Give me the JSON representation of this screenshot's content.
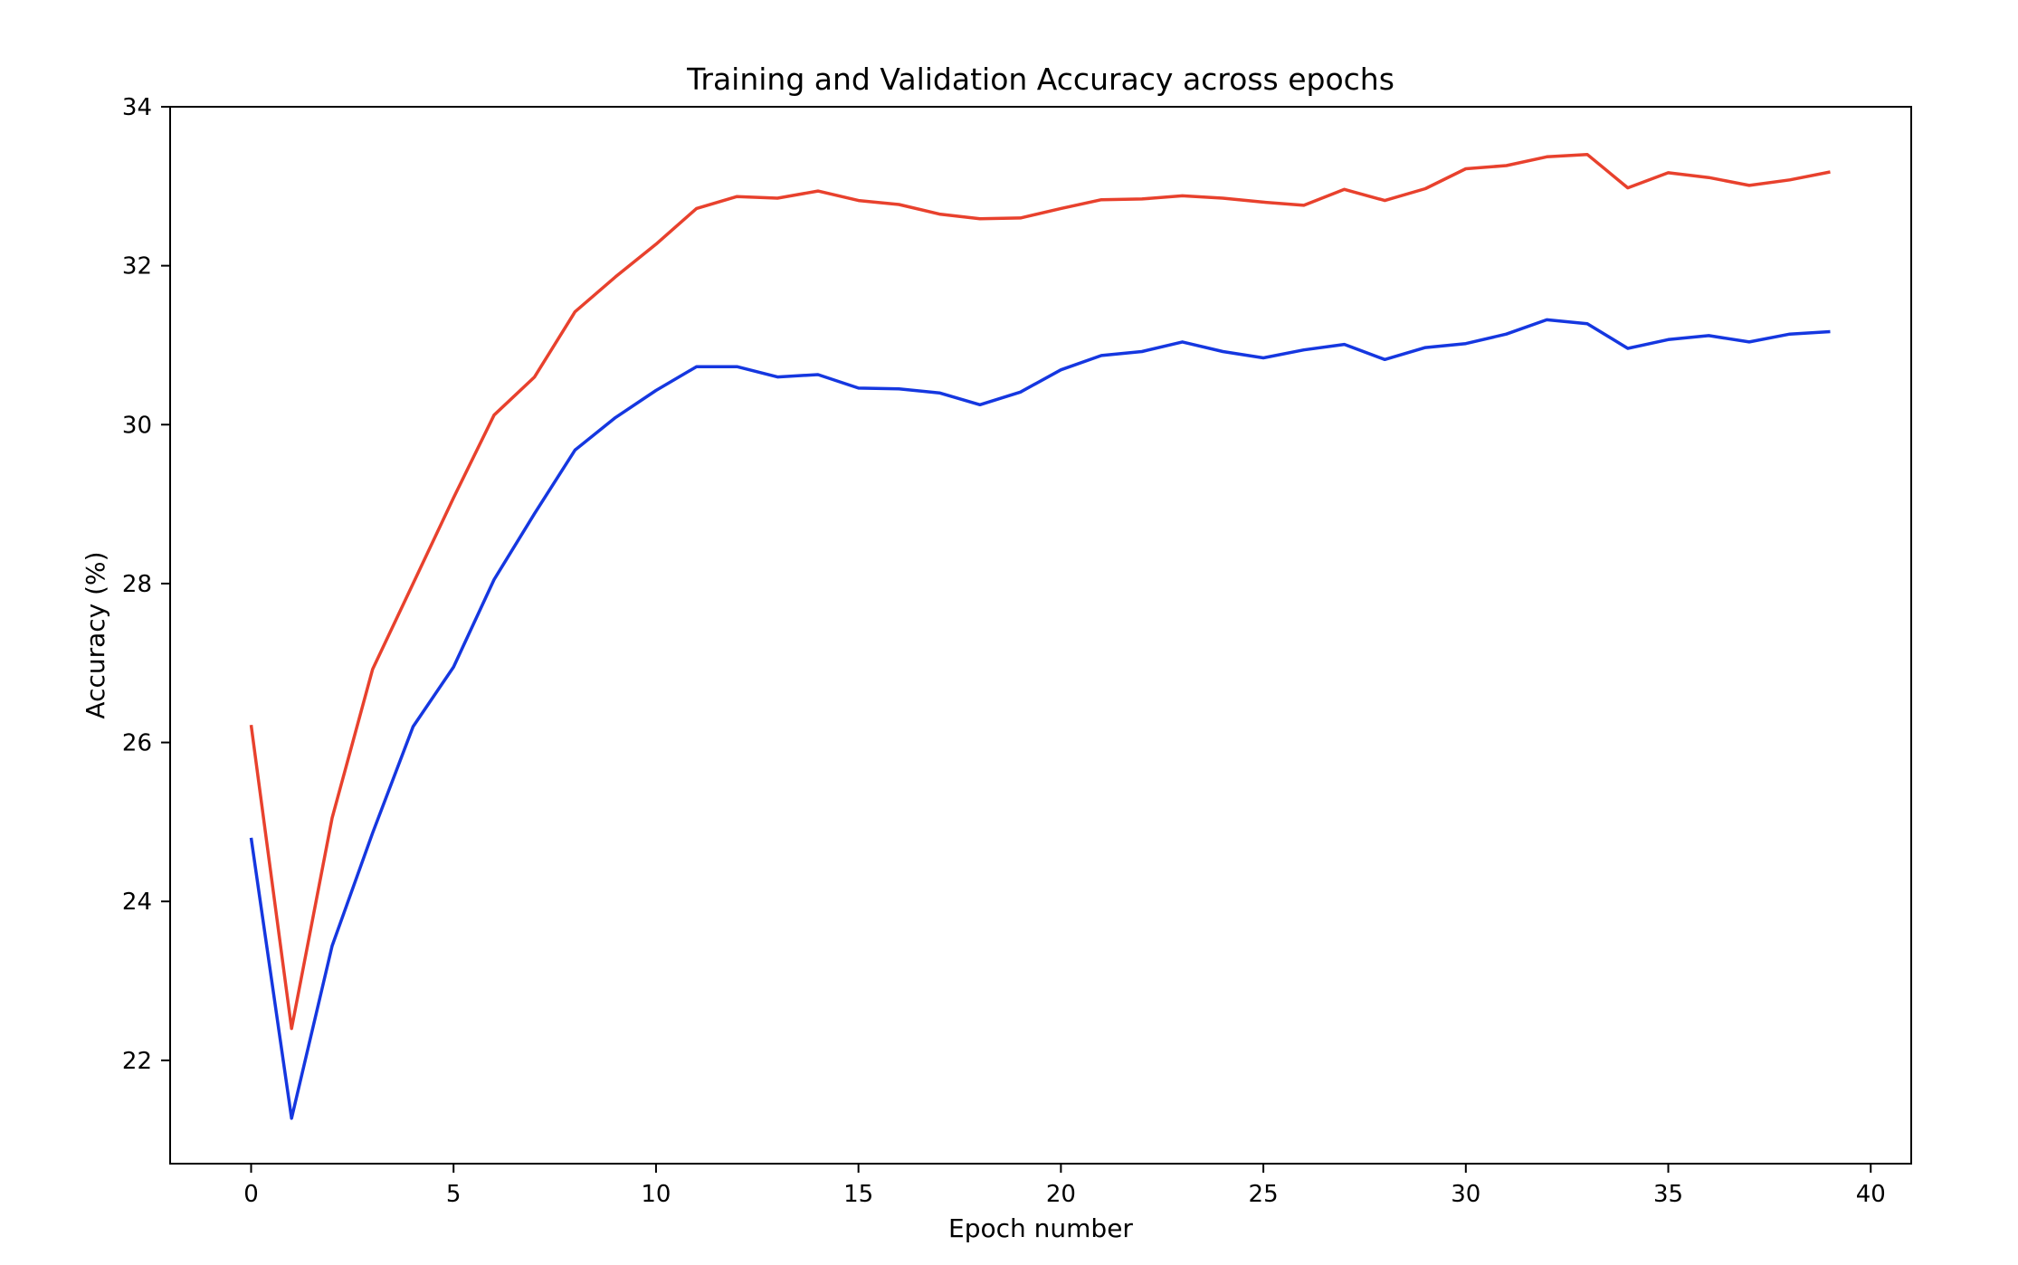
{
  "chart_data": {
    "type": "line",
    "title": "Training and Validation Accuracy across epochs",
    "xlabel": "Epoch number",
    "ylabel": "Accuracy (%)",
    "xlim": [
      -2,
      41
    ],
    "ylim": [
      20.7,
      34
    ],
    "xticks": [
      0,
      5,
      10,
      15,
      20,
      25,
      30,
      35,
      40
    ],
    "yticks": [
      22,
      24,
      26,
      28,
      30,
      32,
      34
    ],
    "xtick_labels": [
      "0",
      "5",
      "10",
      "15",
      "20",
      "25",
      "30",
      "35",
      "40"
    ],
    "ytick_labels": [
      "22",
      "24",
      "26",
      "28",
      "30",
      "32",
      "34"
    ],
    "grid": false,
    "legend": false,
    "x": [
      0,
      1,
      2,
      3,
      4,
      5,
      6,
      7,
      8,
      9,
      10,
      11,
      12,
      13,
      14,
      15,
      16,
      17,
      18,
      19,
      20,
      21,
      22,
      23,
      24,
      25,
      26,
      27,
      28,
      29,
      30,
      31,
      32,
      33,
      34,
      35,
      36,
      37,
      38,
      39
    ],
    "series": [
      {
        "color": "#e8412d",
        "values": [
          26.22,
          22.4,
          25.05,
          26.92,
          28.0,
          29.08,
          30.12,
          30.6,
          31.42,
          31.86,
          32.27,
          32.72,
          32.87,
          32.85,
          32.94,
          32.82,
          32.77,
          32.65,
          32.59,
          32.6,
          32.72,
          32.83,
          32.84,
          32.88,
          32.85,
          32.8,
          32.76,
          32.96,
          32.82,
          32.97,
          33.22,
          33.26,
          33.37,
          33.4,
          32.98,
          33.17,
          33.11,
          33.01,
          33.08,
          33.18
        ]
      },
      {
        "color": "#1537e0",
        "values": [
          24.8,
          21.27,
          23.44,
          24.86,
          26.2,
          26.95,
          28.05,
          28.88,
          29.68,
          30.09,
          30.43,
          30.73,
          30.73,
          30.6,
          30.63,
          30.46,
          30.45,
          30.4,
          30.25,
          30.41,
          30.69,
          30.87,
          30.92,
          31.04,
          30.92,
          30.84,
          30.94,
          31.01,
          30.82,
          30.97,
          31.02,
          31.14,
          31.32,
          31.27,
          30.96,
          31.07,
          31.12,
          31.04,
          31.14,
          31.17
        ]
      }
    ]
  }
}
